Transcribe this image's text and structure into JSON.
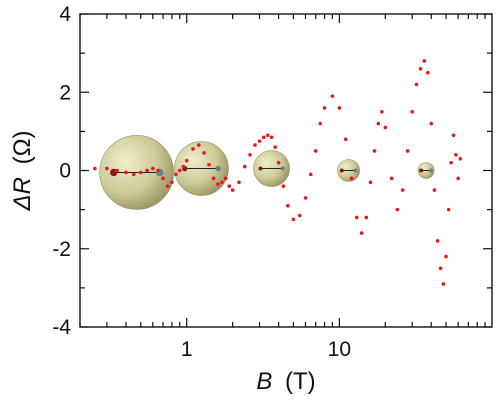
{
  "chart_data": {
    "type": "scatter",
    "x_scale": "log",
    "xlim": [
      0.2,
      100
    ],
    "ylim": [
      -4,
      4
    ],
    "xticks": [
      {
        "value": 1,
        "label": "1"
      },
      {
        "value": 10,
        "label": "10"
      }
    ],
    "yticks": [
      {
        "value": 4,
        "label": "4"
      },
      {
        "value": 2,
        "label": "2"
      },
      {
        "value": 0,
        "label": "0"
      },
      {
        "value": -2,
        "label": "-2"
      },
      {
        "value": -4,
        "label": "-4"
      }
    ],
    "xlabel": {
      "symbol": "B",
      "unit": "(T)"
    },
    "ylabel": {
      "symbol": "ΔR",
      "unit": "(Ω)"
    },
    "grid": false,
    "marker_color": "#e8191b",
    "series": [
      {
        "x": [
          0.25,
          0.3,
          0.35,
          0.4,
          0.45,
          0.5,
          0.55,
          0.6,
          0.65,
          0.7,
          0.75,
          0.8,
          0.85,
          0.9,
          0.95,
          1.0,
          1.1,
          1.2,
          1.3,
          1.4,
          1.5,
          1.6,
          1.7,
          1.8,
          1.9,
          2.0,
          2.2,
          2.4,
          2.6,
          2.8,
          3.0,
          3.2,
          3.4,
          3.6,
          3.8,
          4.0,
          4.3,
          4.6,
          5.0,
          5.5,
          6.0,
          6.5,
          7.0,
          7.5,
          8.0,
          9.0,
          10.0,
          11.0,
          12.0,
          13.0,
          14.0,
          15.0,
          16.0,
          17.0,
          18.0,
          19.0,
          20.0,
          22.0,
          24.0,
          26.0,
          28.0,
          30.0,
          32.0,
          34.0,
          36.0,
          38.0,
          40.0,
          42.0,
          44.0,
          46.0,
          48.0,
          50.0,
          52.0,
          54.0,
          56.0,
          58.0,
          60.0,
          62.0
        ],
        "y": [
          0.05,
          0.05,
          0.0,
          -0.05,
          -0.1,
          -0.05,
          0.0,
          0.05,
          0.0,
          -0.2,
          -0.4,
          -0.3,
          -0.1,
          0.0,
          0.1,
          0.25,
          0.55,
          0.65,
          0.45,
          0.15,
          -0.2,
          -0.35,
          -0.3,
          -0.2,
          -0.4,
          -0.5,
          -0.3,
          0.1,
          0.4,
          0.65,
          0.75,
          0.85,
          0.9,
          0.85,
          0.6,
          0.2,
          -0.4,
          -0.9,
          -1.25,
          -1.15,
          -0.7,
          -0.1,
          0.5,
          1.2,
          1.6,
          1.9,
          1.6,
          0.8,
          -0.2,
          -1.2,
          -1.6,
          -1.2,
          -0.3,
          0.5,
          1.2,
          1.5,
          1.1,
          -0.2,
          -1.0,
          -0.5,
          0.5,
          1.5,
          2.2,
          2.6,
          2.8,
          2.5,
          1.2,
          -0.5,
          -1.8,
          -2.5,
          -2.9,
          -2.2,
          -1.0,
          0.2,
          0.9,
          0.4,
          -0.2,
          0.3
        ]
      }
    ],
    "annotation_spheres": [
      {
        "x": 0.47,
        "y": -0.05,
        "size": "large",
        "color": "#c8c68a"
      },
      {
        "x": 1.25,
        "y": 0.05,
        "size": "medium",
        "color": "#c8c68a"
      },
      {
        "x": 3.6,
        "y": 0.05,
        "size": "small",
        "color": "#c8c68a"
      },
      {
        "x": 11.5,
        "y": 0.0,
        "size": "tiny",
        "color": "#c8c68a"
      },
      {
        "x": 37.0,
        "y": 0.0,
        "size": "micro",
        "color": "#c8c68a"
      }
    ]
  }
}
